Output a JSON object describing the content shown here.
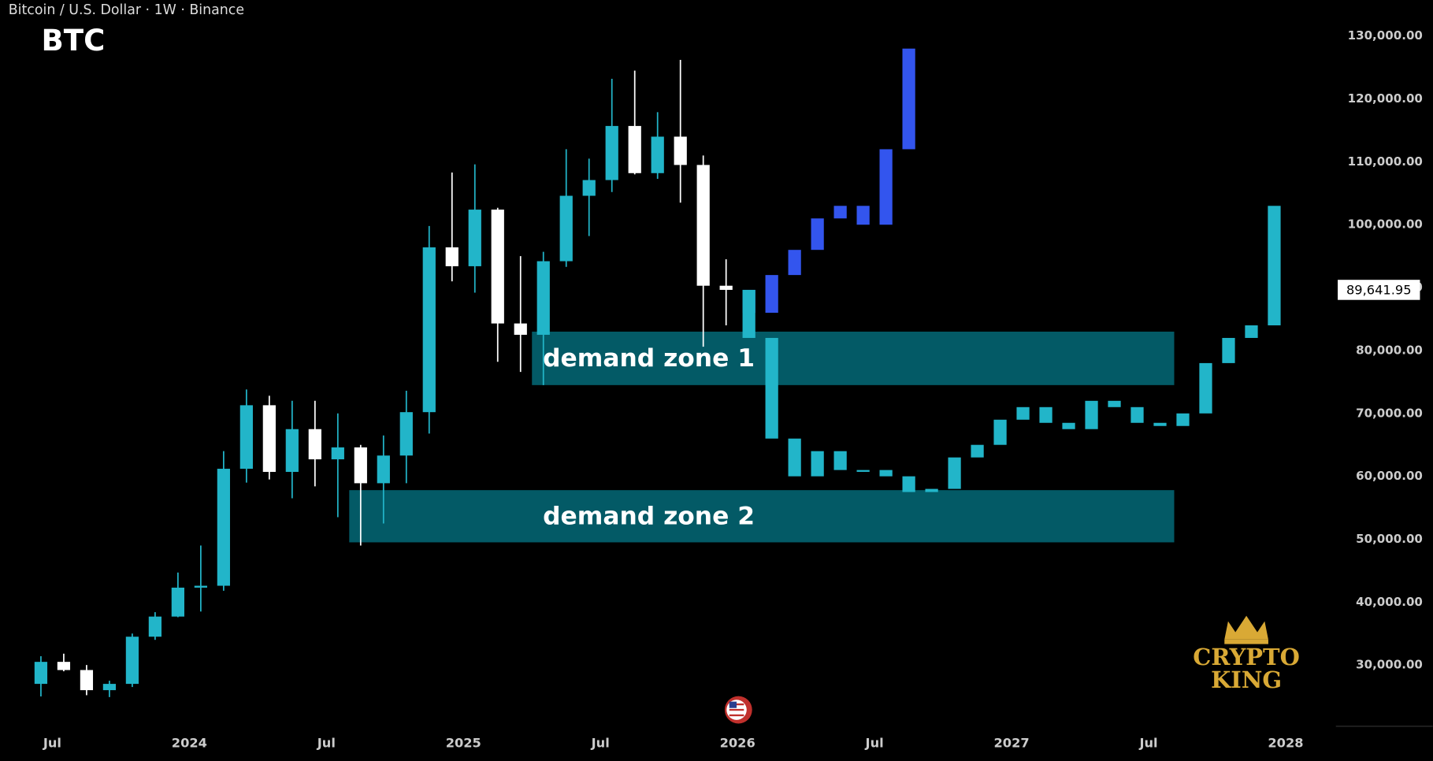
{
  "chart_data": {
    "type": "candlestick",
    "header": "Bitcoin / U.S. Dollar · 1W · Binance",
    "title": "BTC",
    "up_color": "#22b5c9",
    "down_color": "#ffffff",
    "x": [
      "2023-06",
      "2023-07",
      "2023-08",
      "2023-09",
      "2023-10",
      "2023-11",
      "2023-12",
      "2024-01",
      "2024-02",
      "2024-03",
      "2024-04",
      "2024-05",
      "2024-06",
      "2024-07",
      "2024-08",
      "2024-09",
      "2024-10",
      "2024-11",
      "2024-12",
      "2025-01",
      "2025-02",
      "2025-03",
      "2025-04",
      "2025-05",
      "2025-06",
      "2025-07",
      "2025-08",
      "2025-09",
      "2025-10",
      "2025-11",
      "2025-12"
    ],
    "open": [
      27000,
      30500,
      29200,
      26000,
      27000,
      34500,
      37700,
      42300,
      42600,
      61200,
      71300,
      60700,
      67500,
      62700,
      64600,
      58900,
      63300,
      70200,
      96400,
      93400,
      102400,
      84300,
      82500,
      94200,
      104600,
      107100,
      115700,
      108200,
      114000,
      109500,
      90300
    ],
    "high": [
      31400,
      31800,
      30000,
      27500,
      35000,
      38400,
      44700,
      49000,
      64000,
      73800,
      72800,
      72000,
      72000,
      70000,
      65000,
      66500,
      73600,
      99800,
      108300,
      109600,
      102700,
      95000,
      95700,
      112000,
      110500,
      123200,
      124500,
      117900,
      126200,
      111000,
      94500
    ],
    "low": [
      25000,
      29000,
      25200,
      24900,
      26500,
      34000,
      37600,
      38500,
      41800,
      59000,
      59500,
      56500,
      58400,
      53500,
      49000,
      52500,
      58900,
      66800,
      91000,
      89200,
      78200,
      76600,
      74500,
      93300,
      98200,
      105200,
      108000,
      107300,
      103500,
      80600,
      84000
    ],
    "close": [
      30500,
      29200,
      26000,
      27000,
      34500,
      37700,
      42300,
      42600,
      61200,
      71300,
      60700,
      67500,
      62700,
      64600,
      58900,
      63300,
      70200,
      96400,
      93400,
      102400,
      84300,
      82500,
      94200,
      104600,
      107100,
      115700,
      108200,
      114000,
      109500,
      90300,
      89641.95
    ],
    "last_price": {
      "value": 89641.95,
      "label": "89,641.95"
    },
    "series": [
      {
        "color": "#3355ee",
        "x": [
          "2026-01",
          "2026-02",
          "2026-03",
          "2026-04",
          "2026-05",
          "2026-06",
          "2026-07",
          "2026-08"
        ],
        "values": [
          86000,
          92000,
          96000,
          101000,
          103000,
          100000,
          112000,
          128000
        ]
      },
      {
        "color": "#22b5c9",
        "x": [
          "2026-01",
          "2026-02",
          "2026-03",
          "2026-04",
          "2026-05",
          "2026-06",
          "2026-07",
          "2026-08",
          "2026-09",
          "2026-10",
          "2026-11",
          "2026-12",
          "2027-01",
          "2027-02",
          "2027-03",
          "2027-04",
          "2027-05",
          "2027-06",
          "2027-07",
          "2027-08",
          "2027-09",
          "2027-10",
          "2027-11",
          "2027-12"
        ],
        "values": [
          82000,
          66000,
          60000,
          64000,
          61000,
          61000,
          60000,
          57500,
          58000,
          63000,
          65000,
          69000,
          71000,
          68500,
          67500,
          72000,
          71000,
          68500,
          68000,
          70000,
          78000,
          82000,
          84000,
          103000
        ]
      }
    ],
    "annotations": [
      {
        "text": "demand zone 1",
        "x0": "2025-04",
        "x1": "2027-08",
        "y0": 74500,
        "y1": 83000
      },
      {
        "text": "demand zone 2",
        "x0": "2024-08",
        "x1": "2027-08",
        "y0": 49500,
        "y1": 57800
      }
    ],
    "ylim": [
      22000,
      135000
    ],
    "yticks": [
      {
        "value": 30000,
        "label": "30,000.00"
      },
      {
        "value": 40000,
        "label": "40,000.00"
      },
      {
        "value": 50000,
        "label": "50,000.00"
      },
      {
        "value": 60000,
        "label": "60,000.00"
      },
      {
        "value": 70000,
        "label": "70,000.00"
      },
      {
        "value": 80000,
        "label": "80,000.00"
      },
      {
        "value": 90000,
        "label": "90,000.00"
      },
      {
        "value": 100000,
        "label": "100,000.00"
      },
      {
        "value": 110000,
        "label": "110,000.00"
      },
      {
        "value": 120000,
        "label": "120,000.00"
      },
      {
        "value": 130000,
        "label": "130,000.00"
      }
    ],
    "xticks": [
      {
        "value": "2023-07",
        "label": "Jul"
      },
      {
        "value": "2024-01",
        "label": "2024"
      },
      {
        "value": "2024-07",
        "label": "Jul"
      },
      {
        "value": "2025-01",
        "label": "2025"
      },
      {
        "value": "2025-07",
        "label": "Jul"
      },
      {
        "value": "2026-01",
        "label": "2026"
      },
      {
        "value": "2026-07",
        "label": "Jul"
      },
      {
        "value": "2027-01",
        "label": "2027"
      },
      {
        "value": "2027-07",
        "label": "Jul"
      },
      {
        "value": "2028-01",
        "label": "2028"
      }
    ],
    "logo": [
      "CRYPTO",
      "KING"
    ]
  }
}
